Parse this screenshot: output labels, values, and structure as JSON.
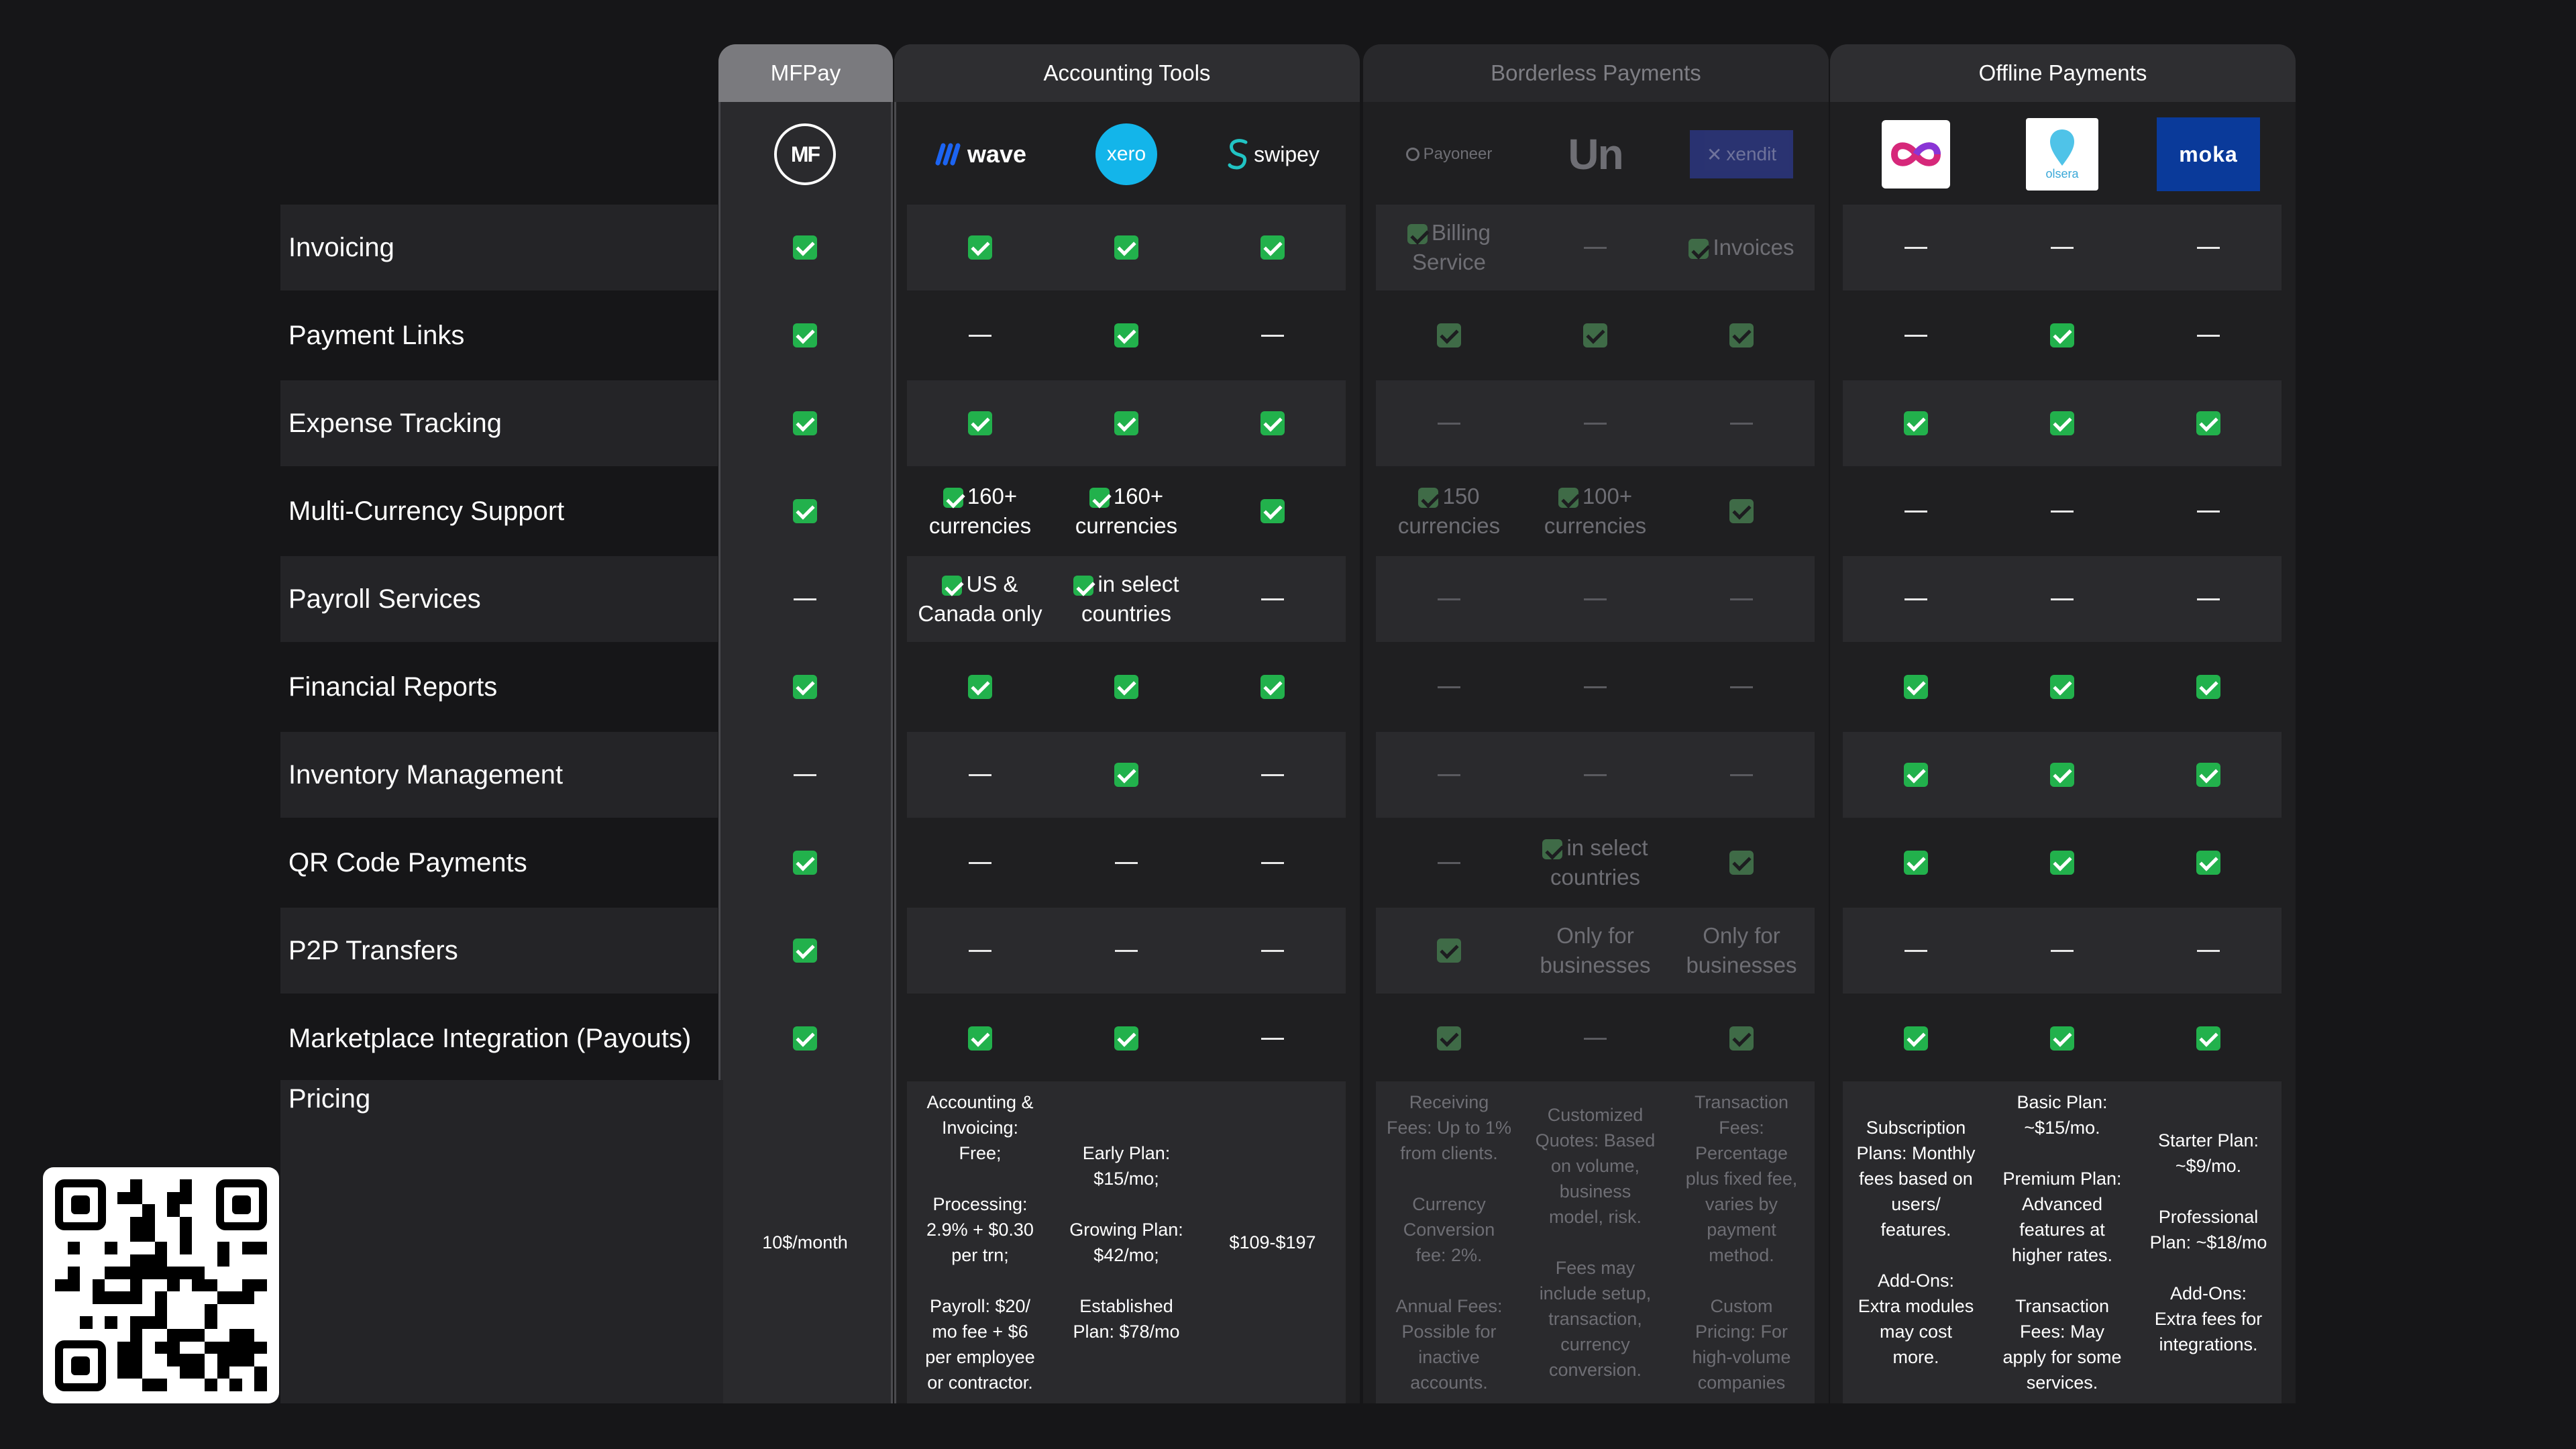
{
  "groups": {
    "mfpay": "MFPay",
    "accounting": "Accounting Tools",
    "borderless": "Borderless Payments",
    "offline": "Offline Payments"
  },
  "logos": {
    "mf": "MF",
    "wave": "wave",
    "xero": "xero",
    "swipey": "swipey",
    "payoneer": "Payoneer",
    "un": "Un",
    "xendit": "xendit",
    "olsera": "olsera",
    "moka": "moka"
  },
  "colors": {
    "check": "#22b14c",
    "wave": "#1c64f2",
    "xero": "#13b5ea",
    "swipey": "#21c4c4",
    "xendit": "#2e3a8c",
    "moka": "#0a3a9a"
  },
  "rows": [
    {
      "label": "Invoicing",
      "cells": [
        "check",
        "check",
        "check",
        "check",
        {
          "check": true,
          "text": "Billing Service"
        },
        "dash",
        {
          "check": true,
          "text": "Invoices"
        },
        "dash",
        "dash",
        "dash"
      ]
    },
    {
      "label": "Payment Links",
      "cells": [
        "check",
        "dash",
        "check",
        "dash",
        "check",
        "check",
        "check",
        "dash",
        "check",
        "dash"
      ]
    },
    {
      "label": "Expense Tracking",
      "cells": [
        "check",
        "check",
        "check",
        "check",
        "dash",
        "dash",
        "dash",
        "check",
        "check",
        "check"
      ]
    },
    {
      "label": "Multi-Currency Support",
      "cells": [
        "check",
        {
          "check": true,
          "text": "160+ currencies"
        },
        {
          "check": true,
          "text": "160+ currencies"
        },
        "check",
        {
          "check": true,
          "text": "150 currencies"
        },
        {
          "check": true,
          "text": "100+ currencies"
        },
        "check",
        "dash",
        "dash",
        "dash"
      ]
    },
    {
      "label": "Payroll Services",
      "cells": [
        "dash",
        {
          "check": true,
          "text": "US & Canada only"
        },
        {
          "check": true,
          "text": "in select countries"
        },
        "dash",
        "dash",
        "dash",
        "dash",
        "dash",
        "dash",
        "dash"
      ]
    },
    {
      "label": "Financial Reports",
      "cells": [
        "check",
        "check",
        "check",
        "check",
        "dash",
        "dash",
        "dash",
        "check",
        "check",
        "check"
      ]
    },
    {
      "label": "Inventory Management",
      "cells": [
        "dash",
        "dash",
        "check",
        "dash",
        "dash",
        "dash",
        "dash",
        "check",
        "check",
        "check"
      ]
    },
    {
      "label": "QR Code Payments",
      "cells": [
        "check",
        "dash",
        "dash",
        "dash",
        "dash",
        {
          "check": true,
          "text": "in select countries"
        },
        "check",
        "check",
        "check",
        "check"
      ]
    },
    {
      "label": "P2P Transfers",
      "cells": [
        "check",
        "dash",
        "dash",
        "dash",
        "check",
        {
          "text": "Only for businesses"
        },
        {
          "text": "Only for businesses"
        },
        "dash",
        "dash",
        "dash"
      ]
    },
    {
      "label": "Marketplace Integration (Payouts)",
      "cells": [
        "check",
        "check",
        "check",
        "dash",
        "check",
        "dash",
        "check",
        "check",
        "check",
        "check"
      ]
    }
  ],
  "pricing": {
    "label": "Pricing",
    "cells": [
      "10$/month",
      "Accounting &\nInvoicing:\nFree;\n\nProcessing:\n2.9% + $0.30\nper trn;\n\nPayroll: $20/\nmo fee + $6\nper employee\nor contractor.",
      "Early Plan:\n$15/mo;\n\nGrowing Plan:\n$42/mo;\n\nEstablished\nPlan: $78/mo",
      "$109-$197",
      "Receiving\nFees: Up to 1%\nfrom clients.\n\nCurrency\nConversion\nfee: 2%.\n\nAnnual Fees:\nPossible for\ninactive\naccounts.",
      "Customized\nQuotes: Based\non volume,\nbusiness\nmodel, risk.\n\nFees may\ninclude setup,\ntransaction,\ncurrency\nconversion.",
      "Transaction\nFees:\nPercentage\nplus fixed fee,\nvaries by\npayment\nmethod.\n\nCustom\nPricing: For\nhigh-volume\ncompanies",
      "Subscription\nPlans: Monthly\nfees based on\nusers/\nfeatures.\n\nAdd-Ons:\nExtra modules\nmay cost\nmore.",
      "Basic Plan:\n~$15/mo.\n\nPremium Plan:\nAdvanced\nfeatures at\nhigher rates.\n\nTransaction\nFees: May\napply for some\nservices.",
      "Starter Plan:\n~$9/mo.\n\nProfessional\nPlan: ~$18/mo\n\nAdd-Ons:\nExtra fees for\nintegrations."
    ]
  }
}
